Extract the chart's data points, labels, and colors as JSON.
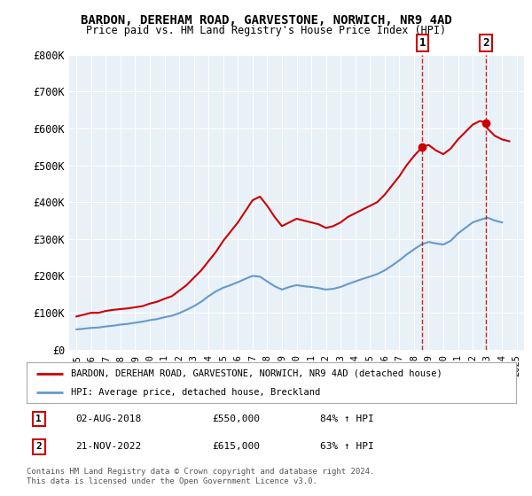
{
  "title": "BARDON, DEREHAM ROAD, GARVESTONE, NORWICH, NR9 4AD",
  "subtitle": "Price paid vs. HM Land Registry's House Price Index (HPI)",
  "ylim": [
    0,
    800000
  ],
  "yticks": [
    0,
    100000,
    200000,
    300000,
    400000,
    500000,
    600000,
    700000,
    800000
  ],
  "ytick_labels": [
    "£0",
    "£100K",
    "£200K",
    "£300K",
    "£400K",
    "£500K",
    "£600K",
    "£700K",
    "£800K"
  ],
  "sale1_year": 2018.58,
  "sale1_label": "1",
  "sale1_date": "02-AUG-2018",
  "sale1_price": "£550,000",
  "sale1_hpi": "84% ↑ HPI",
  "sale1_value": 550000,
  "sale2_year": 2022.89,
  "sale2_label": "2",
  "sale2_date": "21-NOV-2022",
  "sale2_price": "£615,000",
  "sale2_hpi": "63% ↑ HPI",
  "sale2_value": 615000,
  "red_line_color": "#cc0000",
  "blue_line_color": "#6699cc",
  "vline_color": "#cc0000",
  "background_plot": "#e8f0f8",
  "legend_label_red": "BARDON, DEREHAM ROAD, GARVESTONE, NORWICH, NR9 4AD (detached house)",
  "legend_label_blue": "HPI: Average price, detached house, Breckland",
  "footer1": "Contains HM Land Registry data © Crown copyright and database right 2024.",
  "footer2": "This data is licensed under the Open Government Licence v3.0.",
  "xlim_left": 1994.5,
  "xlim_right": 2025.5,
  "red_data_x": [
    1995,
    1995.5,
    1996,
    1996.5,
    1997,
    1997.5,
    1998,
    1998.5,
    1999,
    1999.5,
    2000,
    2000.5,
    2001,
    2001.5,
    2002,
    2002.5,
    2003,
    2003.5,
    2004,
    2004.5,
    2005,
    2005.5,
    2006,
    2006.5,
    2007,
    2007.5,
    2008,
    2008.5,
    2009,
    2009.5,
    2010,
    2010.5,
    2011,
    2011.5,
    2012,
    2012.5,
    2013,
    2013.5,
    2014,
    2014.5,
    2015,
    2015.5,
    2016,
    2016.5,
    2017,
    2017.5,
    2018,
    2018.58,
    2019,
    2019.5,
    2020,
    2020.5,
    2021,
    2021.5,
    2022,
    2022.5,
    2022.89,
    2023,
    2023.5,
    2024,
    2024.5
  ],
  "red_data_y": [
    90000,
    95000,
    100000,
    100000,
    105000,
    108000,
    110000,
    112000,
    115000,
    118000,
    125000,
    130000,
    138000,
    145000,
    160000,
    175000,
    195000,
    215000,
    240000,
    265000,
    295000,
    320000,
    345000,
    375000,
    405000,
    415000,
    390000,
    360000,
    335000,
    345000,
    355000,
    350000,
    345000,
    340000,
    330000,
    335000,
    345000,
    360000,
    370000,
    380000,
    390000,
    400000,
    420000,
    445000,
    470000,
    500000,
    525000,
    550000,
    555000,
    540000,
    530000,
    545000,
    570000,
    590000,
    610000,
    620000,
    615000,
    600000,
    580000,
    570000,
    565000
  ],
  "blue_data_x": [
    1995,
    1995.5,
    1996,
    1996.5,
    1997,
    1997.5,
    1998,
    1998.5,
    1999,
    1999.5,
    2000,
    2000.5,
    2001,
    2001.5,
    2002,
    2002.5,
    2003,
    2003.5,
    2004,
    2004.5,
    2005,
    2005.5,
    2006,
    2006.5,
    2007,
    2007.5,
    2008,
    2008.5,
    2009,
    2009.5,
    2010,
    2010.5,
    2011,
    2011.5,
    2012,
    2012.5,
    2013,
    2013.5,
    2014,
    2014.5,
    2015,
    2015.5,
    2016,
    2016.5,
    2017,
    2017.5,
    2018,
    2018.5,
    2019,
    2019.5,
    2020,
    2020.5,
    2021,
    2021.5,
    2022,
    2022.5,
    2023,
    2023.5,
    2024
  ],
  "blue_data_y": [
    55000,
    57000,
    59000,
    60000,
    63000,
    65000,
    68000,
    70000,
    73000,
    76000,
    80000,
    83000,
    88000,
    92000,
    99000,
    108000,
    118000,
    130000,
    145000,
    158000,
    168000,
    175000,
    183000,
    192000,
    200000,
    198000,
    185000,
    172000,
    163000,
    170000,
    175000,
    172000,
    170000,
    167000,
    163000,
    165000,
    170000,
    178000,
    185000,
    192000,
    198000,
    205000,
    215000,
    228000,
    242000,
    258000,
    272000,
    285000,
    292000,
    288000,
    285000,
    295000,
    315000,
    330000,
    345000,
    352000,
    358000,
    350000,
    345000
  ]
}
